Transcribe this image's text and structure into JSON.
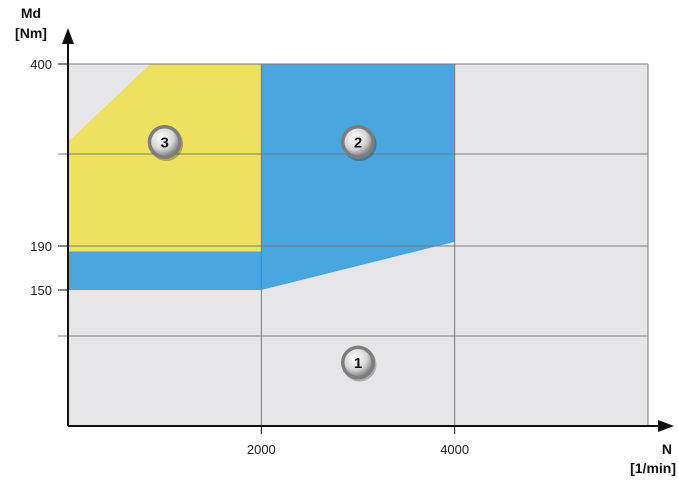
{
  "chart_data": {
    "type": "area",
    "title": "",
    "xlabel": "N",
    "xunit": "[1/min]",
    "ylabel": "Md",
    "yunit": "[Nm]",
    "x_ticks": [
      {
        "value": 2000,
        "label": "2000"
      },
      {
        "value": 4000,
        "label": "4000"
      }
    ],
    "y_ticks": [
      {
        "value": 150,
        "label": "150"
      },
      {
        "value": 190,
        "label": "190"
      },
      {
        "value": 400,
        "label": "400"
      }
    ],
    "regions": [
      {
        "id": "1",
        "label": "1",
        "color": "#e6e6e8",
        "label_at": [
          3000,
          70
        ],
        "points": []
      },
      {
        "id": "2",
        "label": "2",
        "color": "#4aa6de",
        "label_at": [
          3000,
          310
        ],
        "points": [
          [
            0,
            150
          ],
          [
            2000,
            150
          ],
          [
            4000,
            195
          ],
          [
            4000,
            400
          ],
          [
            2000,
            400
          ],
          [
            2000,
            185
          ],
          [
            0,
            185
          ]
        ]
      },
      {
        "id": "3",
        "label": "3",
        "color": "#ede15e",
        "label_at": [
          1000,
          310
        ],
        "points": [
          [
            0,
            310
          ],
          [
            850,
            400
          ],
          [
            2000,
            400
          ],
          [
            2000,
            185
          ],
          [
            0,
            185
          ]
        ]
      }
    ],
    "colors": {
      "background": "#e6e6e8",
      "grid": "#7a7a7a",
      "axis": "#111111"
    }
  }
}
